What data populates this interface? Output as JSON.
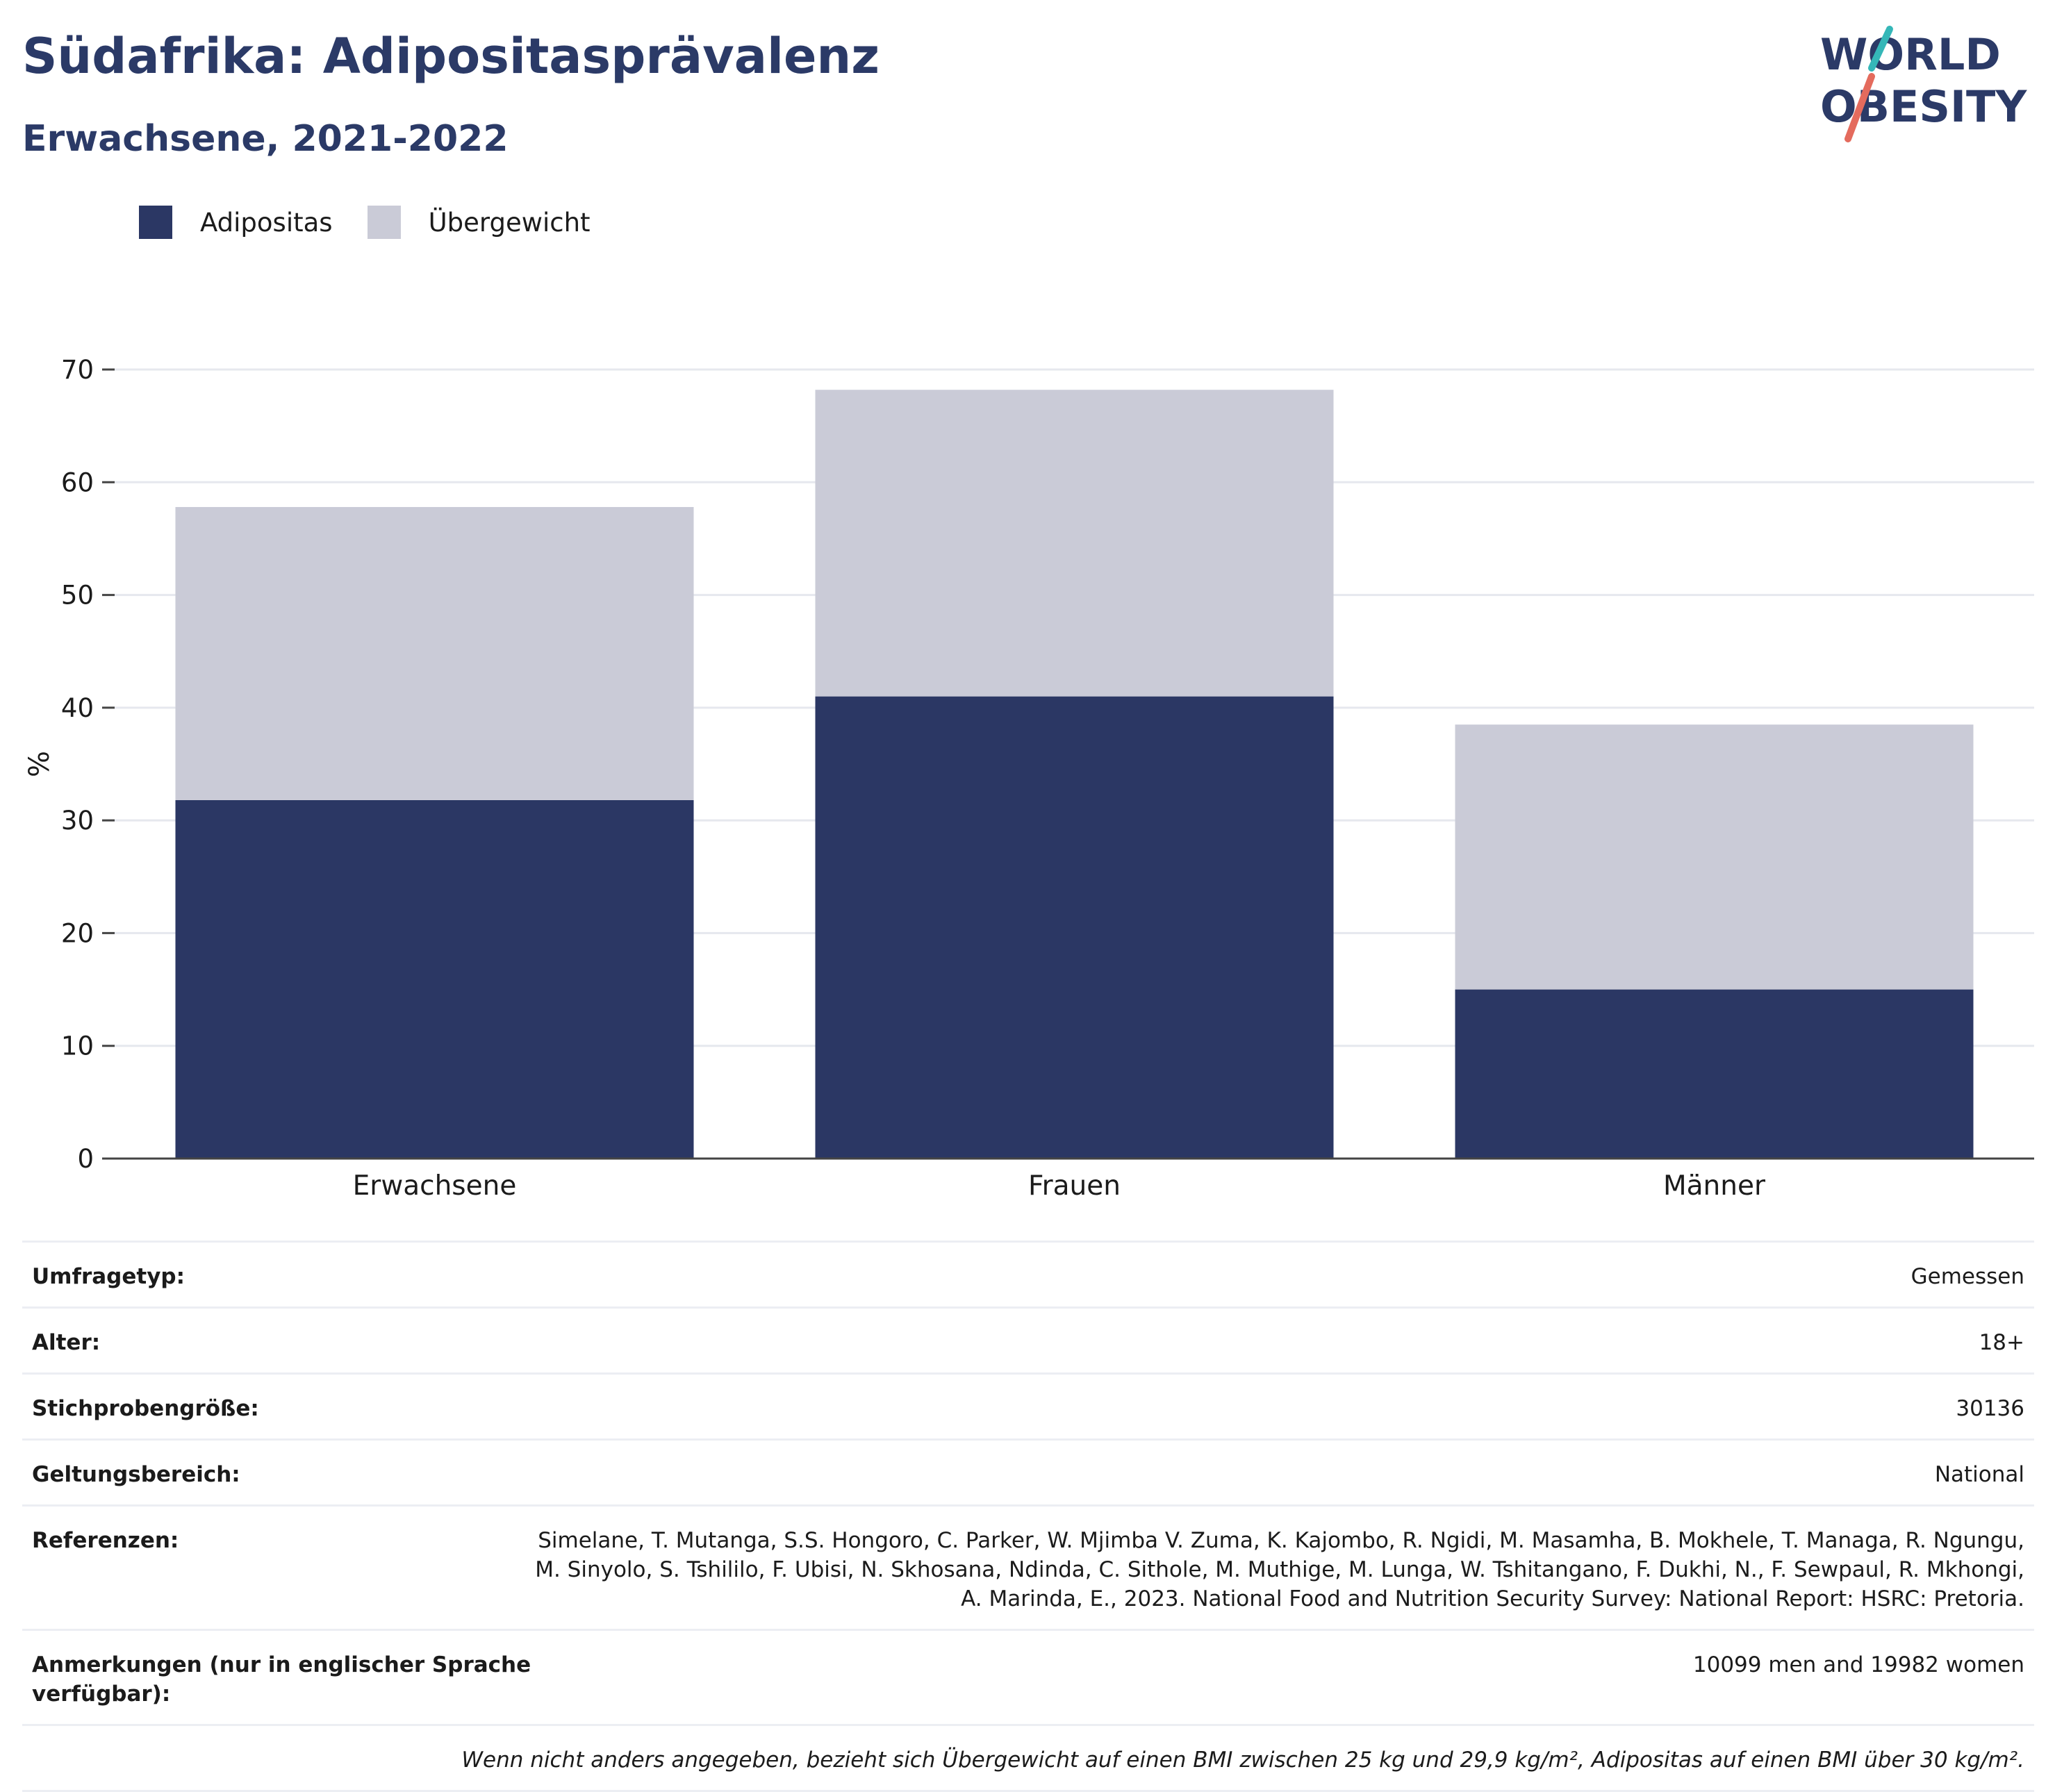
{
  "header": {
    "title": "Südafrika: Adipositasprävalenz",
    "subtitle": "Erwachsene, 2021-2022"
  },
  "logo": {
    "line1": "WORLD",
    "line2": "OBESITY"
  },
  "colors": {
    "obesity": "#2b3764",
    "overweight": "#cacbd7",
    "title": "#2b3a67",
    "accent_teal": "#35b7b8",
    "accent_red": "#e46b5d"
  },
  "chart_data": {
    "type": "bar",
    "stacked": true,
    "categories": [
      "Erwachsene",
      "Frauen",
      "Männer"
    ],
    "series": [
      {
        "name": "Adipositas",
        "values": [
          31.8,
          41.0,
          15.0
        ]
      },
      {
        "name": "Übergewicht",
        "values": [
          26.0,
          27.2,
          23.5
        ]
      }
    ],
    "ylabel": "%",
    "xlabel": "",
    "ylim": [
      0,
      70
    ],
    "yticks": [
      0,
      10,
      20,
      30,
      40,
      50,
      60,
      70
    ],
    "grid": true,
    "legend": "top-left"
  },
  "meta": [
    {
      "key": "Umfragetyp:",
      "value": "Gemessen"
    },
    {
      "key": "Alter:",
      "value": "18+"
    },
    {
      "key": "Stichprobengröße:",
      "value": "30136"
    },
    {
      "key": "Geltungsbereich:",
      "value": "National"
    },
    {
      "key": "Referenzen:",
      "value": "Simelane, T. Mutanga, S.S. Hongoro, C. Parker, W. Mjimba V. Zuma, K. Kajombo, R. Ngidi, M. Masamha, B. Mokhele, T. Managa, R. Ngungu, M. Sinyolo, S. Tshililo, F. Ubisi, N. Skhosana, Ndinda, C. Sithole, M. Muthige, M. Lunga, W. Tshitangano, F. Dukhi, N., F. Sewpaul, R. Mkhongi, A. Marinda, E., 2023. National Food and Nutrition Security Survey: National Report: HSRC: Pretoria."
    },
    {
      "key": "Anmerkungen (nur in englischer Sprache verfügbar):",
      "value": "10099 men and 19982 women"
    }
  ],
  "note": "Wenn nicht anders angegeben, bezieht sich Übergewicht auf einen BMI zwischen 25 kg und 29,9 kg/m², Adipositas auf einen BMI über 30 kg/m²."
}
